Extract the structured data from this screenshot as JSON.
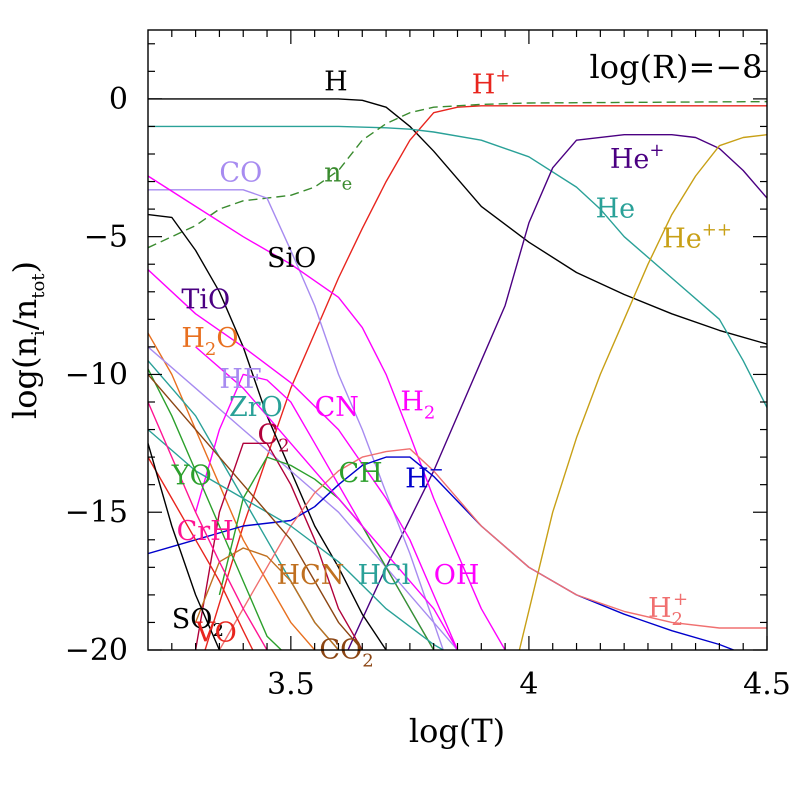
{
  "chart_data": {
    "type": "line",
    "title": "",
    "annotation": "log(R)=−8",
    "xlabel": "log(T)",
    "ylabel": {
      "main": "log(n",
      "sub_i": "i",
      "slash": "/n",
      "sub_tot": "tot",
      "close": ")"
    },
    "xlim": [
      3.2,
      4.5
    ],
    "ylim": [
      -20,
      2.5
    ],
    "xticks": [
      {
        "value": 3.5,
        "label": "3.5"
      },
      {
        "value": 4.0,
        "label": "4"
      },
      {
        "value": 4.5,
        "label": "4.5"
      }
    ],
    "yticks": [
      {
        "value": 0,
        "label": "0"
      },
      {
        "value": -5,
        "label": "−5"
      },
      {
        "value": -10,
        "label": "−10"
      },
      {
        "value": -15,
        "label": "−15"
      },
      {
        "value": -20,
        "label": "−20"
      }
    ],
    "series": [
      {
        "name": "H",
        "color": "#000000",
        "x": [
          3.2,
          3.5,
          3.6,
          3.65,
          3.7,
          3.75,
          3.8,
          3.85,
          3.9,
          4.0,
          4.1,
          4.2,
          4.3,
          4.4,
          4.5
        ],
        "y": [
          0,
          0,
          0,
          -0.05,
          -0.3,
          -1.0,
          -1.9,
          -2.9,
          -3.9,
          -5.2,
          -6.3,
          -7.1,
          -7.8,
          -8.4,
          -8.9
        ]
      },
      {
        "name": "H+",
        "color": "#e8251e",
        "x": [
          3.32,
          3.4,
          3.5,
          3.55,
          3.6,
          3.65,
          3.7,
          3.75,
          3.8,
          3.85,
          3.9,
          4.0,
          4.5
        ],
        "y": [
          -20,
          -15.5,
          -10.5,
          -8.5,
          -6.5,
          -4.7,
          -3.0,
          -1.5,
          -0.5,
          -0.3,
          -0.25,
          -0.25,
          -0.25
        ]
      },
      {
        "name": "He",
        "color": "#2aa198",
        "x": [
          3.2,
          3.5,
          3.6,
          3.7,
          3.75,
          3.8,
          3.9,
          4.0,
          4.1,
          4.15,
          4.2,
          4.3,
          4.4,
          4.45,
          4.5
        ],
        "y": [
          -1.0,
          -1.0,
          -1.0,
          -1.05,
          -1.1,
          -1.2,
          -1.5,
          -2.1,
          -3.2,
          -4.0,
          -5.0,
          -6.5,
          -8.0,
          -9.5,
          -11.2
        ]
      },
      {
        "name": "He+",
        "color": "#4b0082",
        "x": [
          3.62,
          3.7,
          3.8,
          3.9,
          3.95,
          4.0,
          4.05,
          4.1,
          4.2,
          4.3,
          4.35,
          4.4,
          4.45,
          4.5
        ],
        "y": [
          -20,
          -17.0,
          -13.5,
          -9.5,
          -7.5,
          -4.5,
          -2.5,
          -1.5,
          -1.3,
          -1.3,
          -1.4,
          -1.8,
          -2.6,
          -3.6
        ]
      },
      {
        "name": "He++",
        "color": "#c8a016",
        "x": [
          3.98,
          4.05,
          4.1,
          4.15,
          4.2,
          4.25,
          4.3,
          4.35,
          4.4,
          4.45,
          4.5
        ],
        "y": [
          -20,
          -15.0,
          -12.3,
          -10.0,
          -8.0,
          -6.0,
          -4.2,
          -2.8,
          -1.7,
          -1.4,
          -1.3
        ]
      },
      {
        "name": "ne",
        "color": "#3a8b2f",
        "dashed": true,
        "x": [
          3.2,
          3.25,
          3.3,
          3.35,
          3.4,
          3.45,
          3.5,
          3.55,
          3.6,
          3.65,
          3.7,
          3.75,
          3.8,
          3.9,
          4.0,
          4.5
        ],
        "y": [
          -5.4,
          -5.0,
          -4.6,
          -4.0,
          -3.7,
          -3.6,
          -3.5,
          -3.2,
          -2.6,
          -1.5,
          -0.9,
          -0.5,
          -0.3,
          -0.2,
          -0.15,
          -0.1
        ]
      },
      {
        "name": "CO",
        "color": "#a78bf0",
        "x": [
          3.2,
          3.4,
          3.45,
          3.5,
          3.55,
          3.6,
          3.65,
          3.7,
          3.75,
          3.8,
          3.82
        ],
        "y": [
          -3.3,
          -3.3,
          -3.6,
          -5.5,
          -7.5,
          -10.0,
          -12.0,
          -14.3,
          -16.5,
          -19.0,
          -20
        ]
      },
      {
        "name": "SiO",
        "color": "#000000",
        "x": [
          3.2,
          3.25,
          3.3,
          3.35,
          3.4,
          3.45,
          3.5,
          3.55,
          3.6,
          3.65,
          3.7
        ],
        "y": [
          -4.2,
          -4.3,
          -5.5,
          -7.0,
          -9.0,
          -11.5,
          -13.5,
          -15.5,
          -17.0,
          -18.7,
          -20
        ]
      },
      {
        "name": "TiO",
        "color": "#ff00ff",
        "x": [
          3.2,
          3.3,
          3.4,
          3.5,
          3.6,
          3.7,
          3.75,
          3.8,
          3.85
        ],
        "y": [
          -6.2,
          -7.8,
          -9.0,
          -10.3,
          -12.0,
          -14.5,
          -16.0,
          -18.0,
          -20
        ]
      },
      {
        "name": "H2O",
        "color": "#e87020",
        "x": [
          3.2,
          3.25,
          3.3,
          3.35,
          3.4,
          3.45,
          3.5,
          3.55
        ],
        "y": [
          -8.5,
          -10.0,
          -12.0,
          -14.0,
          -16.0,
          -17.5,
          -19.0,
          -20
        ]
      },
      {
        "name": "HF",
        "color": "#a78bf0",
        "x": [
          3.2,
          3.3,
          3.4,
          3.5,
          3.6,
          3.7,
          3.8,
          3.85
        ],
        "y": [
          -9.0,
          -10.5,
          -12.0,
          -13.5,
          -15.0,
          -17.0,
          -19.0,
          -20
        ]
      },
      {
        "name": "ZrO",
        "color": "#2aa198",
        "x": [
          3.2,
          3.25,
          3.3,
          3.35,
          3.4,
          3.45,
          3.5,
          3.55,
          3.6
        ],
        "y": [
          -9.5,
          -10.5,
          -11.5,
          -13.0,
          -14.5,
          -16.0,
          -17.5,
          -19.0,
          -20
        ]
      },
      {
        "name": "C2",
        "color": "#b0003a",
        "x": [
          3.3,
          3.35,
          3.4,
          3.45,
          3.5,
          3.55,
          3.6,
          3.65
        ],
        "y": [
          -20,
          -15.0,
          -12.5,
          -12.5,
          -14.0,
          -16.0,
          -18.5,
          -20
        ]
      },
      {
        "name": "CN",
        "color": "#ff00ff",
        "x": [
          3.3,
          3.35,
          3.4,
          3.45,
          3.5,
          3.55,
          3.6,
          3.7,
          3.75,
          3.8
        ],
        "y": [
          -15.0,
          -12.0,
          -10.0,
          -10.2,
          -11.0,
          -12.5,
          -14.0,
          -17.0,
          -18.5,
          -20
        ]
      },
      {
        "name": "CH",
        "color": "#2ca02c",
        "x": [
          3.35,
          3.4,
          3.45,
          3.5,
          3.55,
          3.6,
          3.65,
          3.7,
          3.75,
          3.8
        ],
        "y": [
          -18.0,
          -14.5,
          -13.0,
          -13.3,
          -13.8,
          -14.5,
          -15.5,
          -17.0,
          -18.5,
          -20
        ]
      },
      {
        "name": "H2",
        "color": "#ff00ff",
        "x": [
          3.2,
          3.3,
          3.4,
          3.5,
          3.6,
          3.65,
          3.7,
          3.75,
          3.8,
          3.85,
          3.9,
          3.95
        ],
        "y": [
          -2.8,
          -3.9,
          -5.0,
          -6.0,
          -7.2,
          -8.3,
          -10.0,
          -12.2,
          -14.5,
          -16.5,
          -18.5,
          -20
        ]
      },
      {
        "name": "H-",
        "color": "#0000cc",
        "x": [
          3.2,
          3.3,
          3.4,
          3.5,
          3.55,
          3.6,
          3.65,
          3.7,
          3.75,
          3.8,
          3.9,
          4.0,
          4.1,
          4.2,
          4.3,
          4.4,
          4.43
        ],
        "y": [
          -16.5,
          -16.0,
          -15.5,
          -15.3,
          -14.8,
          -14.0,
          -13.3,
          -13.0,
          -13.0,
          -13.7,
          -15.5,
          -17.0,
          -18.0,
          -18.7,
          -19.3,
          -19.8,
          -20
        ]
      },
      {
        "name": "H2+",
        "color": "#f07070",
        "x": [
          3.35,
          3.45,
          3.5,
          3.55,
          3.6,
          3.65,
          3.7,
          3.75,
          3.8,
          3.9,
          4.0,
          4.1,
          4.2,
          4.3,
          4.4,
          4.5
        ],
        "y": [
          -20,
          -17.0,
          -15.5,
          -14.3,
          -13.5,
          -13.0,
          -12.8,
          -12.7,
          -13.5,
          -15.5,
          -17.0,
          -18.0,
          -18.6,
          -19.0,
          -19.2,
          -19.2
        ]
      },
      {
        "name": "OH",
        "color": "#ff00ff",
        "x": [
          3.3,
          3.4,
          3.5,
          3.6,
          3.7,
          3.8,
          3.85
        ],
        "y": [
          -9.0,
          -10.5,
          -12.5,
          -14.5,
          -16.5,
          -18.5,
          -20
        ]
      },
      {
        "name": "HCl",
        "color": "#2aa198",
        "x": [
          3.2,
          3.3,
          3.4,
          3.5,
          3.6,
          3.7,
          3.8,
          3.82
        ],
        "y": [
          -12.0,
          -13.5,
          -14.5,
          -15.5,
          -16.8,
          -18.5,
          -19.8,
          -20
        ]
      },
      {
        "name": "HCN",
        "color": "#c07020",
        "x": [
          3.3,
          3.35,
          3.4,
          3.45,
          3.5,
          3.55,
          3.6
        ],
        "y": [
          -19.0,
          -16.8,
          -16.3,
          -16.6,
          -17.5,
          -19.0,
          -20
        ]
      },
      {
        "name": "YO",
        "color": "#2ca02c",
        "x": [
          3.2,
          3.25,
          3.3,
          3.35,
          3.4,
          3.45,
          3.48
        ],
        "y": [
          -9.8,
          -11.5,
          -13.5,
          -15.5,
          -17.5,
          -19.5,
          -20
        ]
      },
      {
        "name": "CrH",
        "color": "#ff1493",
        "x": [
          3.2,
          3.25,
          3.3,
          3.35,
          3.4,
          3.45
        ],
        "y": [
          -11.0,
          -13.0,
          -15.0,
          -16.8,
          -18.5,
          -20
        ]
      },
      {
        "name": "VO",
        "color": "#e8251e",
        "x": [
          3.2,
          3.25,
          3.3,
          3.35,
          3.4,
          3.42
        ],
        "y": [
          -13.0,
          -14.5,
          -16.0,
          -17.5,
          -19.3,
          -20
        ]
      },
      {
        "name": "SO2",
        "color": "#000000",
        "x": [
          3.2,
          3.25,
          3.3,
          3.35
        ],
        "y": [
          -12.5,
          -15.5,
          -18.0,
          -20
        ]
      },
      {
        "name": "CO2",
        "color": "#8b4513",
        "x": [
          3.2,
          3.3,
          3.4,
          3.5,
          3.55,
          3.6,
          3.65
        ],
        "y": [
          -10.0,
          -12.0,
          -14.0,
          -16.0,
          -17.5,
          -19.0,
          -20
        ]
      }
    ],
    "labels": [
      {
        "series": "H",
        "text": "H",
        "color": "#000000",
        "x": 3.57,
        "y": 0.3
      },
      {
        "series": "H+",
        "text": "H",
        "sup": "+",
        "color": "#e8251e",
        "x": 3.88,
        "y": 0.2
      },
      {
        "series": "He+",
        "text": "He",
        "sup": "+",
        "color": "#4b0082",
        "x": 4.17,
        "y": -2.5
      },
      {
        "series": "He",
        "text": "He",
        "color": "#2aa198",
        "x": 4.14,
        "y": -4.3
      },
      {
        "series": "He++",
        "text": "He",
        "sup": "++",
        "color": "#c8a016",
        "x": 4.28,
        "y": -5.4
      },
      {
        "series": "ne",
        "text": "n",
        "sub": "e",
        "color": "#3a8b2f",
        "x": 3.57,
        "y": -3.0
      },
      {
        "series": "CO",
        "text": "CO",
        "color": "#a78bf0",
        "x": 3.35,
        "y": -3.0
      },
      {
        "series": "SiO",
        "text": "SiO",
        "color": "#000000",
        "x": 3.45,
        "y": -6.1
      },
      {
        "series": "TiO",
        "text": "TiO",
        "color": "#4b0082",
        "x": 3.27,
        "y": -7.6
      },
      {
        "series": "H2O",
        "text": "H",
        "sub": "2",
        "tail": "O",
        "color": "#e87020",
        "x": 3.27,
        "y": -9.0
      },
      {
        "series": "HF",
        "text": "HF",
        "color": "#a78bf0",
        "x": 3.35,
        "y": -10.5
      },
      {
        "series": "ZrO",
        "text": "ZrO",
        "color": "#2aa198",
        "x": 3.37,
        "y": -11.5
      },
      {
        "series": "C2",
        "text": "C",
        "sub": "2",
        "color": "#b0003a",
        "x": 3.43,
        "y": -12.5
      },
      {
        "series": "CN",
        "text": "CN",
        "color": "#ff00ff",
        "x": 3.55,
        "y": -11.5
      },
      {
        "series": "H2",
        "text": "H",
        "sub": "2",
        "color": "#ff00ff",
        "x": 3.73,
        "y": -11.3
      },
      {
        "series": "CH",
        "text": "CH",
        "color": "#2ca02c",
        "x": 3.6,
        "y": -13.9
      },
      {
        "series": "H-",
        "text": "H",
        "sup": "−",
        "color": "#0000cc",
        "x": 3.74,
        "y": -14.1
      },
      {
        "series": "YO",
        "text": "YO",
        "color": "#2ca02c",
        "x": 3.25,
        "y": -14.0
      },
      {
        "series": "CrH",
        "text": "CrH",
        "color": "#ff1493",
        "x": 3.26,
        "y": -16.0
      },
      {
        "series": "HCN",
        "text": "HCN",
        "color": "#c07020",
        "x": 3.47,
        "y": -17.6
      },
      {
        "series": "HCl",
        "text": "HCl",
        "color": "#2aa198",
        "x": 3.64,
        "y": -17.6
      },
      {
        "series": "OH",
        "text": "OH",
        "color": "#ff00ff",
        "x": 3.8,
        "y": -17.6
      },
      {
        "series": "H2+",
        "text": "H",
        "sub": "2",
        "sup": "+",
        "color": "#f07070",
        "x": 4.25,
        "y": -18.8
      },
      {
        "series": "SO2",
        "text": "SO",
        "sub": "2",
        "color": "#000000",
        "x": 3.25,
        "y": -19.2
      },
      {
        "series": "VO",
        "text": "VO",
        "color": "#e8251e",
        "x": 3.3,
        "y": -19.7
      },
      {
        "series": "CO2",
        "text": "CO",
        "sub": "2",
        "color": "#8b4513",
        "x": 3.56,
        "y": -20.3
      }
    ]
  }
}
